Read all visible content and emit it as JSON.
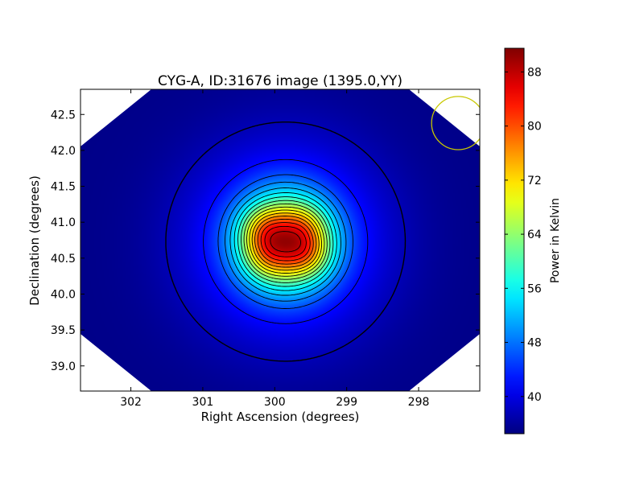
{
  "chart_data": {
    "type": "heatmap",
    "title": "CYG-A, ID:31676 image (1395.0,YY)",
    "xlabel": "Right Ascension (degrees)",
    "ylabel": "Declination (degrees)",
    "x_range": [
      302.7,
      297.15
    ],
    "y_range": [
      38.65,
      42.85
    ],
    "x_ticks": [
      "302",
      "301",
      "300",
      "299",
      "298"
    ],
    "x_tick_values": [
      302,
      301,
      300,
      299,
      298
    ],
    "y_ticks": [
      "39.0",
      "39.5",
      "40.0",
      "40.5",
      "41.0",
      "41.5",
      "42.0",
      "42.5"
    ],
    "y_tick_values": [
      39.0,
      39.5,
      40.0,
      40.5,
      41.0,
      41.5,
      42.0,
      42.5
    ],
    "colorbar": {
      "label": "Power in Kelvin",
      "range": [
        34.5,
        91.5
      ],
      "ticks": [
        "40",
        "48",
        "56",
        "64",
        "72",
        "80",
        "88"
      ],
      "tick_values": [
        40,
        48,
        56,
        64,
        72,
        80,
        88
      ],
      "colormap": "jet"
    },
    "source": {
      "name": "CYG-A",
      "center_ra": 299.85,
      "center_dec": 40.73,
      "peak_kelvin": 90.5,
      "background_kelvin": 35.0
    },
    "contours": {
      "color": "#000000",
      "levels": [
        37.5,
        42,
        46,
        49,
        52,
        55,
        58,
        61,
        64,
        67,
        70,
        73,
        76,
        79,
        82,
        85,
        88
      ]
    },
    "beam": {
      "shape": "circle",
      "center_ra": 297.45,
      "center_dec": 42.38,
      "radius_deg": 0.37,
      "color": "#c8c800"
    },
    "grid": false,
    "legend": "none"
  }
}
